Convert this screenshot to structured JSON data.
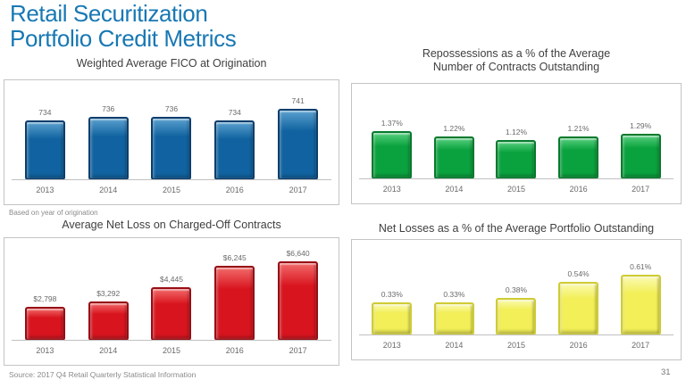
{
  "slide": {
    "title_line1": "Retail Securitization",
    "title_line2": "Portfolio Credit Metrics",
    "footnote": "Based on year of origination",
    "source": "Source: 2017 Q4 Retail Quarterly Statistical Information",
    "page_number": "31"
  },
  "colors": {
    "title_blue": "#1878b4",
    "chart_title_gray": "#3f3f3f",
    "label_gray": "#6a6a6a",
    "panel_border": "#c4c4c4",
    "axis_gray": "#c0c0c0"
  },
  "chart_data": [
    {
      "type": "bar",
      "title": "Weighted Average FICO at Origination",
      "title_lines": [
        "Weighted Average FICO at Origination"
      ],
      "categories": [
        "2013",
        "2014",
        "2015",
        "2016",
        "2017"
      ],
      "values": [
        734,
        736,
        736,
        734,
        741
      ],
      "labels": [
        "734",
        "736",
        "736",
        "734",
        "741"
      ],
      "ylim": [
        700,
        748
      ],
      "grid": false,
      "legend": "none",
      "bar_color": "#1063a0",
      "bar_edge": "#0c3e6d",
      "bar_highlight": "#5aa0cf"
    },
    {
      "type": "bar",
      "title": "Repossessions as a % of the Average Number of Contracts Outstanding",
      "title_lines": [
        "Repossessions as a % of the Average",
        "Number of Contracts Outstanding"
      ],
      "categories": [
        "2013",
        "2014",
        "2015",
        "2016",
        "2017"
      ],
      "values": [
        1.37,
        1.22,
        1.12,
        1.21,
        1.29
      ],
      "labels": [
        "1.37%",
        "1.22%",
        "1.12%",
        "1.21%",
        "1.29%"
      ],
      "ylim": [
        0,
        2.25
      ],
      "grid": false,
      "legend": "none",
      "bar_color": "#0aa23e",
      "bar_edge": "#077a2d",
      "bar_highlight": "#57cf7f"
    },
    {
      "type": "bar",
      "title": "Average Net Loss on Charged-Off Contracts",
      "title_lines": [
        "Average Net Loss on Charged-Off Contracts"
      ],
      "categories": [
        "2013",
        "2014",
        "2015",
        "2016",
        "2017"
      ],
      "values": [
        2798,
        3292,
        4445,
        6245,
        6640
      ],
      "labels": [
        "$2,798",
        "$3,292",
        "$4,445",
        "$6,245",
        "$6,640"
      ],
      "ylim": [
        0,
        7200
      ],
      "grid": false,
      "legend": "none",
      "bar_color": "#d8151f",
      "bar_edge": "#970e15",
      "bar_highlight": "#f26a6a"
    },
    {
      "type": "bar",
      "title": "Net Losses as a % of the Average Portfolio Outstanding",
      "title_lines": [
        "Net Losses as a % of the Average Portfolio Outstanding"
      ],
      "categories": [
        "2013",
        "2014",
        "2015",
        "2016",
        "2017"
      ],
      "values": [
        0.33,
        0.33,
        0.38,
        0.54,
        0.61
      ],
      "labels": [
        "0.33%",
        "0.33%",
        "0.38%",
        "0.54%",
        "0.61%"
      ],
      "ylim": [
        0,
        0.8
      ],
      "grid": false,
      "legend": "none",
      "bar_color": "#f2ef58",
      "bar_edge": "#cfcc34",
      "bar_highlight": "#fbfab2"
    }
  ]
}
